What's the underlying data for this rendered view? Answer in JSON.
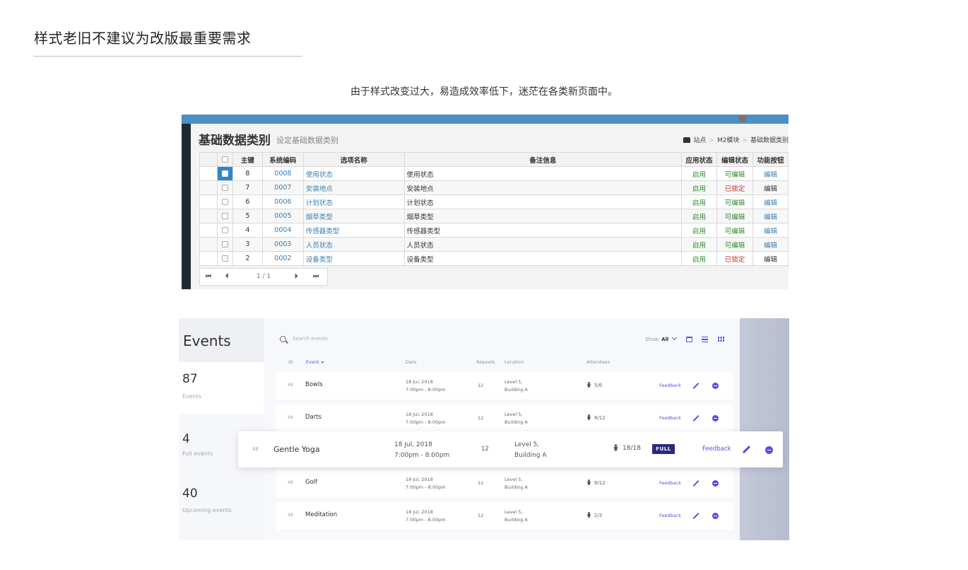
{
  "slide": {
    "title": "样式老旧不建议为改版最重要需求",
    "subtitle": "由于样式改变过大，易造成效率低下，迷茫在各类新页面中。"
  },
  "old_ui": {
    "heading": "基础数据类别",
    "heading_small": "设定基础数据类别",
    "breadcrumb": [
      "站点",
      "M2模块",
      "基础数据类别"
    ],
    "columns": [
      "主键",
      "系统编码",
      "选项名称",
      "备注信息",
      "应用状态",
      "编辑状态",
      "功能按钮"
    ],
    "rows": [
      {
        "id": "8",
        "code": "0008",
        "name": "使用状态",
        "memo": "使用状态",
        "status": "启用",
        "edit": "可编辑",
        "edit_locked": false,
        "action": "编辑",
        "selected": true
      },
      {
        "id": "7",
        "code": "0007",
        "name": "安装地点",
        "memo": "安装地点",
        "status": "启用",
        "edit": "已锁定",
        "edit_locked": true,
        "action": "编辑",
        "selected": false
      },
      {
        "id": "6",
        "code": "0006",
        "name": "计划状态",
        "memo": "计划状态",
        "status": "启用",
        "edit": "可编辑",
        "edit_locked": false,
        "action": "编辑",
        "selected": false
      },
      {
        "id": "5",
        "code": "0005",
        "name": "烟草类型",
        "memo": "烟草类型",
        "status": "启用",
        "edit": "可编辑",
        "edit_locked": false,
        "action": "编辑",
        "selected": false
      },
      {
        "id": "4",
        "code": "0004",
        "name": "传感器类型",
        "memo": "传感器类型",
        "status": "启用",
        "edit": "可编辑",
        "edit_locked": false,
        "action": "编辑",
        "selected": false
      },
      {
        "id": "3",
        "code": "0003",
        "name": "人员状态",
        "memo": "人员状态",
        "status": "启用",
        "edit": "可编辑",
        "edit_locked": false,
        "action": "编辑",
        "selected": false
      },
      {
        "id": "2",
        "code": "0002",
        "name": "设备类型",
        "memo": "设备类型",
        "status": "启用",
        "edit": "已锁定",
        "edit_locked": true,
        "action": "编辑",
        "selected": false
      }
    ],
    "pager": {
      "first": "⏮",
      "prev": "⏴",
      "page": "1 / 1",
      "next": "⏵",
      "last": "⏭"
    },
    "colors": {
      "topbar": "#4a8fc5",
      "link": "#3a7fb0",
      "enabled": "#2a8a2a",
      "locked": "#c0392b"
    }
  },
  "new_ui": {
    "title": "Events",
    "stats": [
      {
        "value": "87",
        "label": "Events"
      },
      {
        "value": "4",
        "label": "Full events"
      },
      {
        "value": "40",
        "label": "Upcoming events"
      }
    ],
    "search_placeholder": "Search events",
    "show_label": "Show:",
    "show_value": "All",
    "columns": {
      "id": "ID",
      "event": "Event",
      "date": "Date",
      "repeats": "Repeats",
      "location": "Location",
      "attendees": "Attendees"
    },
    "rows": [
      {
        "id": "48",
        "name": "Bowls",
        "date1": "18 Jul, 2018",
        "date2": "7:00pm - 8:00pm",
        "repeats": "12",
        "loc1": "Level 5,",
        "loc2": "Building A",
        "attendees": "5/6",
        "feedback": "Feedback"
      },
      {
        "id": "48",
        "name": "Darts",
        "date1": "18 Jul, 2018",
        "date2": "7:00pm - 8:00pm",
        "repeats": "12",
        "loc1": "Level 5,",
        "loc2": "Building A",
        "attendees": "8/12",
        "feedback": "Feedback"
      },
      {
        "id": "48",
        "name": "Golf",
        "date1": "18 Jul, 2018",
        "date2": "7:00pm - 8:00pm",
        "repeats": "12",
        "loc1": "Level 5,",
        "loc2": "Building A",
        "attendees": "8/12",
        "feedback": "Feedback"
      },
      {
        "id": "48",
        "name": "Meditation",
        "date1": "18 Jul, 2018",
        "date2": "7:00pm - 8:00pm",
        "repeats": "12",
        "loc1": "Level 5,",
        "loc2": "Building A",
        "attendees": "2/3",
        "feedback": "Feedback"
      }
    ],
    "highlight": {
      "id": "48",
      "name": "Gentle Yoga",
      "date1": "18 Jul, 2018",
      "date2": "7:00pm - 8:00pm",
      "repeats": "12",
      "loc1": "Level 5,",
      "loc2": "Building A",
      "attendees": "18/18",
      "badge": "FULL",
      "feedback": "Feedback"
    },
    "colors": {
      "accent": "#5b4ddb",
      "badge": "#2b2a7e"
    }
  }
}
